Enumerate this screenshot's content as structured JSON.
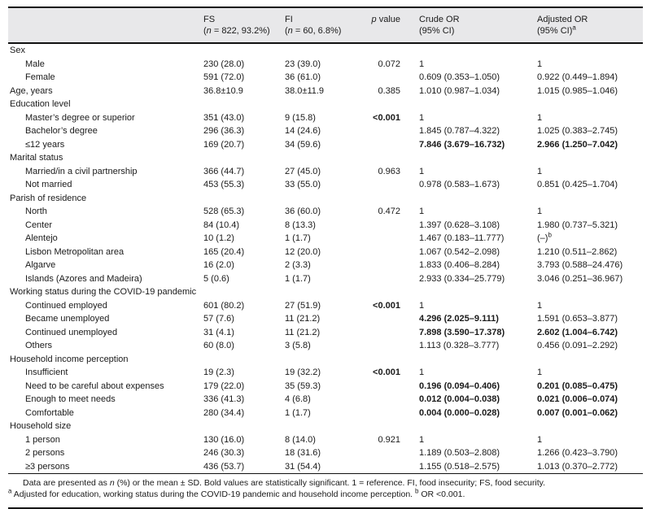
{
  "colors": {
    "header_bg": "#e8e8ea",
    "rule": "#111111",
    "text": "#1a1a1a"
  },
  "table": {
    "header": {
      "variable": "",
      "fs": {
        "title": "FS",
        "sub_pre": "(",
        "sub_italic": "n",
        "sub_post": " = 822, 93.2%)"
      },
      "fi": {
        "title": "FI",
        "sub_pre": "(",
        "sub_italic": "n",
        "sub_post": " = 60, 6.8%)"
      },
      "p": {
        "italic": "p",
        "rest": " value"
      },
      "crude": {
        "title": "Crude OR",
        "sub": "(95% CI)"
      },
      "adjusted": {
        "title": "Adjusted OR",
        "sub": "(95% CI)",
        "sup": "a"
      }
    },
    "rows": [
      {
        "type": "group",
        "label": "Sex"
      },
      {
        "type": "item",
        "label": "Male",
        "fs": "230 (28.0)",
        "fi": "23 (39.0)",
        "p": "0.072",
        "crude": "1",
        "adj": "1"
      },
      {
        "type": "item",
        "label": "Female",
        "fs": "591 (72.0)",
        "fi": "36 (61.0)",
        "p": "",
        "crude": "0.609 (0.353–1.050)",
        "adj": "0.922 (0.449–1.894)"
      },
      {
        "type": "plain",
        "label": "Age, years",
        "fs": "36.8±10.9",
        "fi": "38.0±11.9",
        "p": "0.385",
        "crude": "1.010 (0.987–1.034)",
        "adj": "1.015 (0.985–1.046)"
      },
      {
        "type": "group",
        "label": "Education level"
      },
      {
        "type": "item",
        "label": "Master’s degree or superior",
        "fs": "351 (43.0)",
        "fi": "9 (15.8)",
        "p": "<0.001",
        "p_bold": true,
        "crude": "1",
        "adj": "1"
      },
      {
        "type": "item",
        "label": "Bachelor’s degree",
        "fs": "296 (36.3)",
        "fi": "14 (24.6)",
        "p": "",
        "crude": "1.845 (0.787–4.322)",
        "adj": "1.025 (0.383–2.745)"
      },
      {
        "type": "item",
        "label": "≤12 years",
        "fs": "169 (20.7)",
        "fi": "34 (59.6)",
        "p": "",
        "crude": "7.846 (3.679–16.732)",
        "crude_bold": true,
        "adj": "2.966 (1.250–7.042)",
        "adj_bold": true
      },
      {
        "type": "group",
        "label": "Marital status"
      },
      {
        "type": "item",
        "label": "Married/in a civil partnership",
        "fs": "366 (44.7)",
        "fi": "27 (45.0)",
        "p": "0.963",
        "crude": "1",
        "adj": "1"
      },
      {
        "type": "item",
        "label": "Not married",
        "fs": "453 (55.3)",
        "fi": "33 (55.0)",
        "p": "",
        "crude": "0.978 (0.583–1.673)",
        "adj": "0.851 (0.425–1.704)"
      },
      {
        "type": "group",
        "label": "Parish of residence"
      },
      {
        "type": "item",
        "label": "North",
        "fs": "528 (65.3)",
        "fi": "36 (60.0)",
        "p": "0.472",
        "crude": "1",
        "adj": "1"
      },
      {
        "type": "item",
        "label": "Center",
        "fs": "84 (10.4)",
        "fi": "8 (13.3)",
        "p": "",
        "crude": "1.397 (0.628–3.108)",
        "adj": "1.980 (0.737–5.321)"
      },
      {
        "type": "item",
        "label": "Alentejo",
        "fs": "10 (1.2)",
        "fi": "1 (1.7)",
        "p": "",
        "crude": "1.467 (0.183–11.777)",
        "adj": "(–)",
        "adj_sup": "b"
      },
      {
        "type": "item",
        "label": "Lisbon Metropolitan area",
        "fs": "165 (20.4)",
        "fi": "12 (20.0)",
        "p": "",
        "crude": "1.067 (0.542–2.098)",
        "adj": "1.210 (0.511–2.862)"
      },
      {
        "type": "item",
        "label": "Algarve",
        "fs": "16 (2.0)",
        "fi": "2 (3.3)",
        "p": "",
        "crude": "1.833 (0.406–8.284)",
        "adj": "3.793 (0.588–24.476)"
      },
      {
        "type": "item",
        "label": "Islands (Azores and Madeira)",
        "fs": "5 (0.6)",
        "fi": "1 (1.7)",
        "p": "",
        "crude": "2.933 (0.334–25.779)",
        "adj": "3.046 (0.251–36.967)"
      },
      {
        "type": "group",
        "label": "Working status during the COVID-19 pandemic"
      },
      {
        "type": "item",
        "label": "Continued employed",
        "fs": "601 (80.2)",
        "fi": "27 (51.9)",
        "p": "<0.001",
        "p_bold": true,
        "crude": "1",
        "adj": "1"
      },
      {
        "type": "item",
        "label": "Became unemployed",
        "fs": "57 (7.6)",
        "fi": "11 (21.2)",
        "p": "",
        "crude": "4.296 (2.025–9.111)",
        "crude_bold": true,
        "adj": "1.591 (0.653–3.877)"
      },
      {
        "type": "item",
        "label": "Continued unemployed",
        "fs": "31 (4.1)",
        "fi": "11 (21.2)",
        "p": "",
        "crude": "7.898 (3.590–17.378)",
        "crude_bold": true,
        "adj": "2.602 (1.004–6.742)",
        "adj_bold": true
      },
      {
        "type": "item",
        "label": "Others",
        "fs": "60 (8.0)",
        "fi": "3 (5.8)",
        "p": "",
        "crude": "1.113 (0.328–3.777)",
        "adj": "0.456 (0.091–2.292)"
      },
      {
        "type": "group",
        "label": "Household income perception"
      },
      {
        "type": "item",
        "label": "Insufficient",
        "fs": "19 (2.3)",
        "fi": "19 (32.2)",
        "p": "<0.001",
        "p_bold": true,
        "crude": "1",
        "adj": "1"
      },
      {
        "type": "item",
        "label": "Need to be careful about expenses",
        "fs": "179 (22.0)",
        "fi": "35 (59.3)",
        "p": "",
        "crude": "0.196 (0.094–0.406)",
        "crude_bold": true,
        "adj": "0.201 (0.085–0.475)",
        "adj_bold": true
      },
      {
        "type": "item",
        "label": "Enough to meet needs",
        "fs": "336 (41.3)",
        "fi": "4 (6.8)",
        "p": "",
        "crude": "0.012 (0.004–0.038)",
        "crude_bold": true,
        "adj": "0.021 (0.006–0.074)",
        "adj_bold": true
      },
      {
        "type": "item",
        "label": "Comfortable",
        "fs": "280 (34.4)",
        "fi": "1 (1.7)",
        "p": "",
        "crude": "0.004 (0.000–0.028)",
        "crude_bold": true,
        "adj": "0.007 (0.001–0.062)",
        "adj_bold": true
      },
      {
        "type": "group",
        "label": "Household size"
      },
      {
        "type": "item",
        "label": "1 person",
        "fs": "130 (16.0)",
        "fi": "8 (14.0)",
        "p": "0.921",
        "crude": "1",
        "adj": "1"
      },
      {
        "type": "item",
        "label": "2 persons",
        "fs": "246 (30.3)",
        "fi": "18 (31.6)",
        "p": "",
        "crude": "1.189 (0.503–2.808)",
        "adj": "1.266 (0.423–3.790)"
      },
      {
        "type": "item",
        "label": "≥3 persons",
        "fs": "436 (53.7)",
        "fi": "31 (54.4)",
        "p": "",
        "crude": "1.155 (0.518–2.575)",
        "adj": "1.013 (0.370–2.772)"
      }
    ]
  },
  "footnotes": {
    "line1": {
      "pre": "Data are presented as ",
      "italic": "n",
      "post": " (%) or the mean ± SD. Bold values are statistically significant. 1 = reference. FI, food insecurity; FS, food security."
    },
    "line2": {
      "sup_a": "a",
      "text_a": " Adjusted for education, working status during the COVID-19 pandemic and household income perception. ",
      "sup_b": "b",
      "text_b": " OR <0.001."
    }
  }
}
